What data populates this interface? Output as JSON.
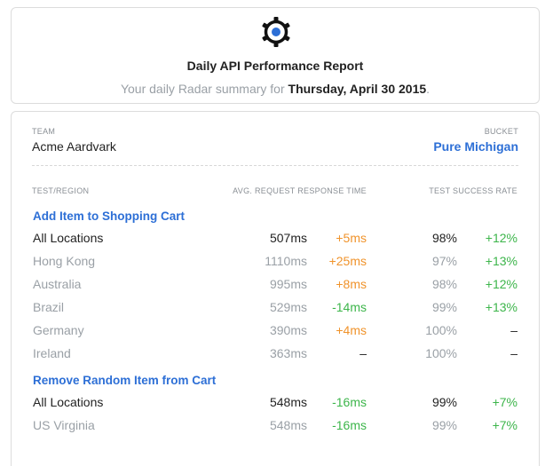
{
  "header": {
    "title": "Daily API Performance Report",
    "summary_prefix": "Your daily Radar summary for",
    "summary_date": "Thursday, April 30 2015",
    "summary_suffix": ".",
    "logo_icon": "gear-radar-icon",
    "accent": "#2d6fd6"
  },
  "meta": {
    "team_label": "TEAM",
    "team_value": "Acme Aardvark",
    "bucket_label": "BUCKET",
    "bucket_value": "Pure Michigan"
  },
  "columns": {
    "test_region": "TEST/REGION",
    "response_time": "AVG. REQUEST RESPONSE TIME",
    "success_rate": "TEST SUCCESS RATE"
  },
  "groups": [
    {
      "title": "Add Item to Shopping Cart",
      "rows": [
        {
          "region": "All Locations",
          "ms": "507ms",
          "ms_delta": "+5ms",
          "rate": "98%",
          "rate_delta": "+12%"
        },
        {
          "region": "Hong Kong",
          "ms": "1110ms",
          "ms_delta": "+25ms",
          "rate": "97%",
          "rate_delta": "+13%"
        },
        {
          "region": "Australia",
          "ms": "995ms",
          "ms_delta": "+8ms",
          "rate": "98%",
          "rate_delta": "+12%"
        },
        {
          "region": "Brazil",
          "ms": "529ms",
          "ms_delta": "-14ms",
          "rate": "99%",
          "rate_delta": "+13%"
        },
        {
          "region": "Germany",
          "ms": "390ms",
          "ms_delta": "+4ms",
          "rate": "100%",
          "rate_delta": "–"
        },
        {
          "region": "Ireland",
          "ms": "363ms",
          "ms_delta": "–",
          "rate": "100%",
          "rate_delta": "–"
        }
      ]
    },
    {
      "title": "Remove Random Item from Cart",
      "rows": [
        {
          "region": "All Locations",
          "ms": "548ms",
          "ms_delta": "-16ms",
          "rate": "99%",
          "rate_delta": "+7%"
        },
        {
          "region": "US Virginia",
          "ms": "548ms",
          "ms_delta": "-16ms",
          "rate": "99%",
          "rate_delta": "+7%"
        }
      ]
    }
  ]
}
